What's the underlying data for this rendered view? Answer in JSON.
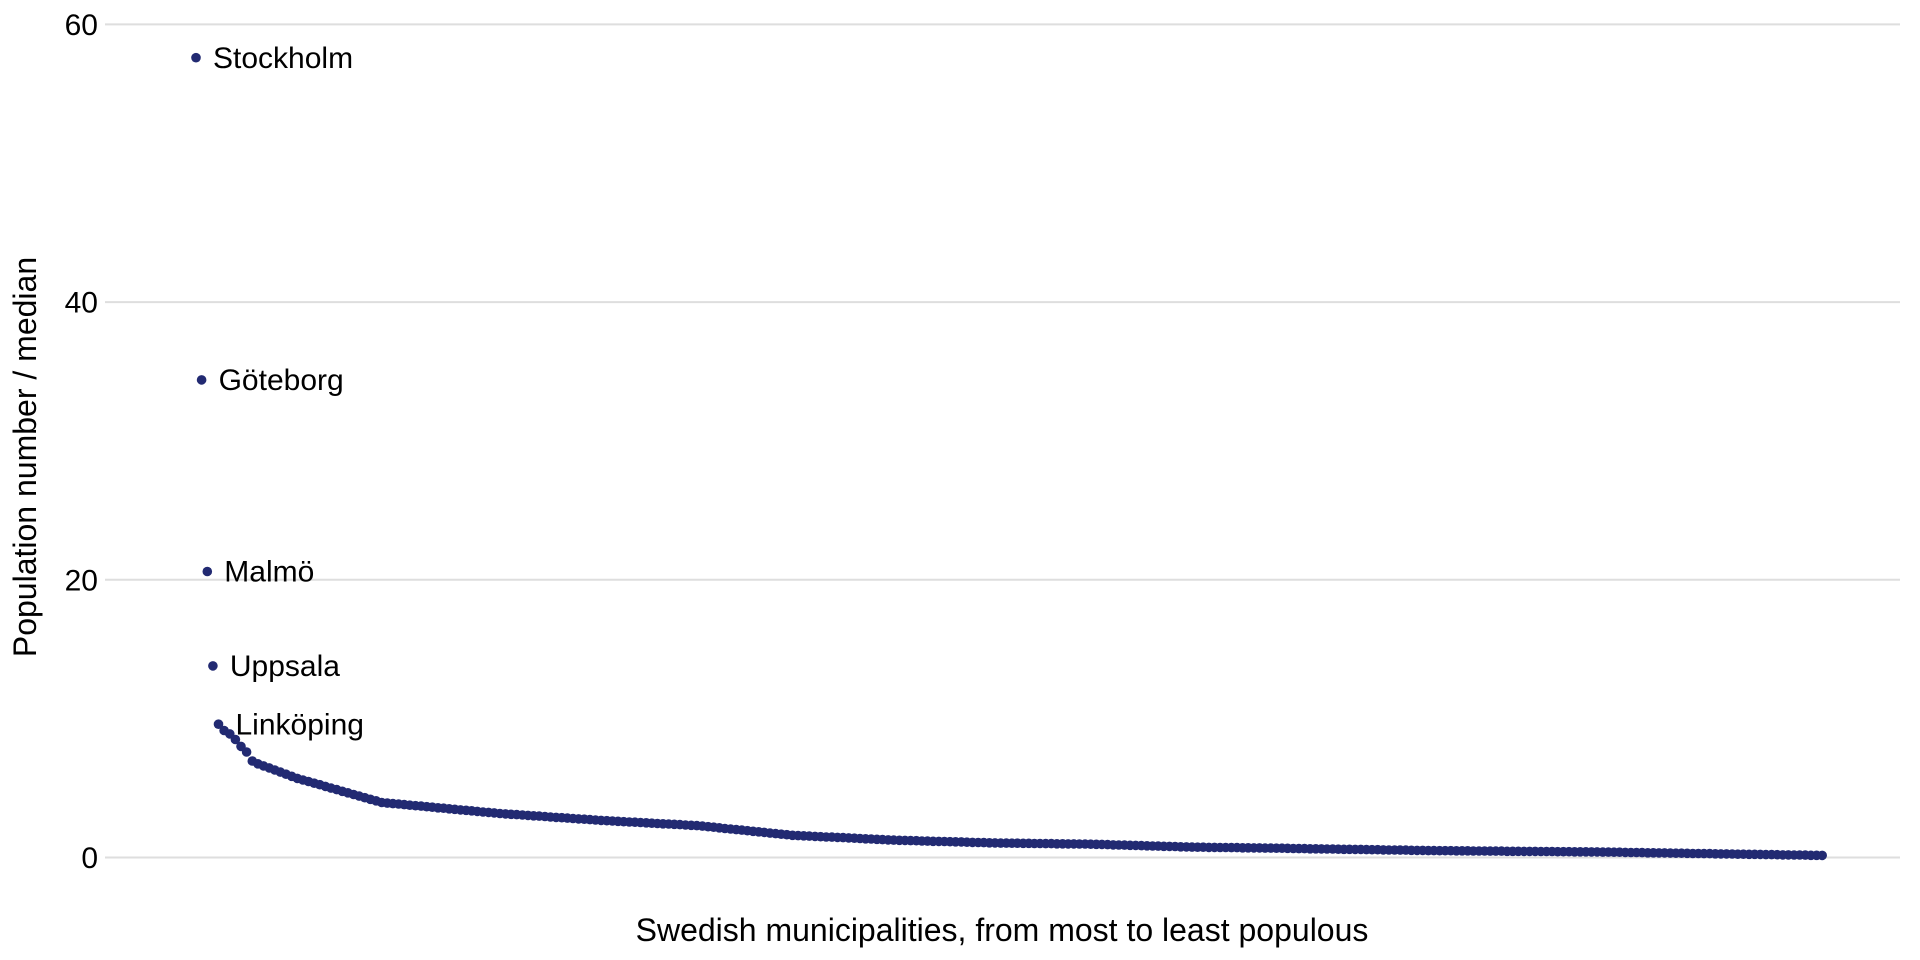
{
  "figure": {
    "background_color": "#ffffff"
  },
  "chart_data": {
    "type": "scatter",
    "title": "",
    "xlabel": "Swedish municipalities, from most to least populous",
    "ylabel": "Population number / median",
    "x_description": "municipality rank by population, 1 (most populous) to 290 (least populous), no x tick labels shown",
    "n_points": 290,
    "yticks": [
      0,
      20,
      40,
      60
    ],
    "ylim": [
      0,
      60
    ],
    "grid": "horizontal-major-only",
    "legend": "none",
    "point_color": "#222a72",
    "gridline_color": "#dedede",
    "text_color": "#000000",
    "labeled_points": [
      {
        "rank": 1,
        "label": "Stockholm"
      },
      {
        "rank": 2,
        "label": "Göteborg"
      },
      {
        "rank": 3,
        "label": "Malmö"
      },
      {
        "rank": 4,
        "label": "Uppsala"
      },
      {
        "rank": 5,
        "label": "Linköping"
      }
    ],
    "values": [
      57.6,
      34.4,
      20.6,
      13.8,
      9.6,
      9.15,
      8.9,
      8.5,
      8.0,
      7.6,
      6.95,
      6.75,
      6.6,
      6.45,
      6.3,
      6.15,
      6.0,
      5.85,
      5.7,
      5.58,
      5.47,
      5.35,
      5.24,
      5.12,
      5.0,
      4.89,
      4.77,
      4.66,
      4.54,
      4.42,
      4.31,
      4.19,
      4.08,
      3.96,
      3.92,
      3.88,
      3.85,
      3.81,
      3.77,
      3.73,
      3.7,
      3.66,
      3.62,
      3.58,
      3.55,
      3.51,
      3.47,
      3.43,
      3.4,
      3.36,
      3.32,
      3.28,
      3.25,
      3.21,
      3.17,
      3.14,
      3.11,
      3.09,
      3.06,
      3.03,
      3.0,
      2.98,
      2.95,
      2.92,
      2.89,
      2.87,
      2.84,
      2.81,
      2.78,
      2.76,
      2.73,
      2.7,
      2.67,
      2.65,
      2.63,
      2.61,
      2.58,
      2.56,
      2.54,
      2.52,
      2.5,
      2.47,
      2.45,
      2.43,
      2.41,
      2.39,
      2.37,
      2.34,
      2.32,
      2.3,
      2.26,
      2.22,
      2.18,
      2.14,
      2.09,
      2.05,
      2.01,
      1.97,
      1.93,
      1.89,
      1.85,
      1.81,
      1.76,
      1.72,
      1.68,
      1.64,
      1.6,
      1.58,
      1.56,
      1.54,
      1.52,
      1.5,
      1.48,
      1.47,
      1.45,
      1.43,
      1.41,
      1.39,
      1.37,
      1.35,
      1.33,
      1.31,
      1.29,
      1.27,
      1.25,
      1.24,
      1.23,
      1.22,
      1.21,
      1.19,
      1.18,
      1.17,
      1.16,
      1.15,
      1.14,
      1.13,
      1.12,
      1.1,
      1.09,
      1.08,
      1.07,
      1.06,
      1.05,
      1.04,
      1.04,
      1.03,
      1.03,
      1.02,
      1.02,
      1.01,
      1.01,
      1.0,
      1.0,
      0.99,
      0.99,
      0.98,
      0.98,
      0.97,
      0.97,
      0.96,
      0.95,
      0.94,
      0.93,
      0.91,
      0.9,
      0.89,
      0.88,
      0.87,
      0.86,
      0.84,
      0.83,
      0.82,
      0.81,
      0.8,
      0.79,
      0.77,
      0.76,
      0.75,
      0.74,
      0.74,
      0.73,
      0.73,
      0.72,
      0.72,
      0.71,
      0.71,
      0.7,
      0.7,
      0.69,
      0.69,
      0.68,
      0.68,
      0.67,
      0.67,
      0.66,
      0.65,
      0.64,
      0.64,
      0.63,
      0.63,
      0.62,
      0.61,
      0.61,
      0.6,
      0.59,
      0.59,
      0.58,
      0.58,
      0.57,
      0.56,
      0.56,
      0.55,
      0.54,
      0.54,
      0.53,
      0.53,
      0.52,
      0.51,
      0.51,
      0.5,
      0.5,
      0.49,
      0.49,
      0.49,
      0.48,
      0.48,
      0.48,
      0.47,
      0.47,
      0.47,
      0.46,
      0.46,
      0.46,
      0.45,
      0.45,
      0.45,
      0.44,
      0.44,
      0.44,
      0.43,
      0.43,
      0.43,
      0.42,
      0.42,
      0.42,
      0.41,
      0.41,
      0.41,
      0.4,
      0.4,
      0.39,
      0.39,
      0.38,
      0.38,
      0.37,
      0.36,
      0.36,
      0.35,
      0.34,
      0.34,
      0.33,
      0.33,
      0.32,
      0.31,
      0.31,
      0.3,
      0.29,
      0.29,
      0.28,
      0.28,
      0.27,
      0.26,
      0.26,
      0.25,
      0.24,
      0.24,
      0.23,
      0.23,
      0.22,
      0.21,
      0.21,
      0.2,
      0.19,
      0.19,
      0.18,
      0.18,
      0.17,
      0.16,
      0.16,
      0.15
    ]
  }
}
